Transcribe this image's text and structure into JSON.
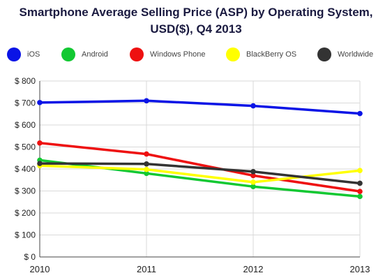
{
  "chart_data": {
    "type": "line",
    "title_lines": [
      "Smartphone Average Selling Price (ASP) by Operating System,",
      "USD($), Q4 2013"
    ],
    "xlabel": "",
    "ylabel": "",
    "categories": [
      "2010",
      "2011",
      "2012",
      "2013"
    ],
    "ylim": [
      0,
      800
    ],
    "yticks": [
      0,
      100,
      200,
      300,
      400,
      500,
      600,
      700,
      800
    ],
    "ytick_labels": [
      "$ 0",
      "$ 100",
      "$ 200",
      "$ 300",
      "$ 400",
      "$ 500",
      "$ 600",
      "$ 700",
      "$ 800"
    ],
    "grid": true,
    "legend_position": "top",
    "series": [
      {
        "name": "iOS",
        "color": "#0a14e6",
        "values": [
          702,
          710,
          687,
          652
        ]
      },
      {
        "name": "Android",
        "color": "#12c832",
        "values": [
          440,
          380,
          320,
          275
        ]
      },
      {
        "name": "Windows Phone",
        "color": "#ee1111",
        "values": [
          518,
          468,
          370,
          298
        ]
      },
      {
        "name": "BlackBerry OS",
        "color": "#ffff00",
        "values": [
          415,
          398,
          340,
          393
        ]
      },
      {
        "name": "Worldwide",
        "color": "#333333",
        "values": [
          425,
          423,
          388,
          335
        ]
      }
    ]
  }
}
